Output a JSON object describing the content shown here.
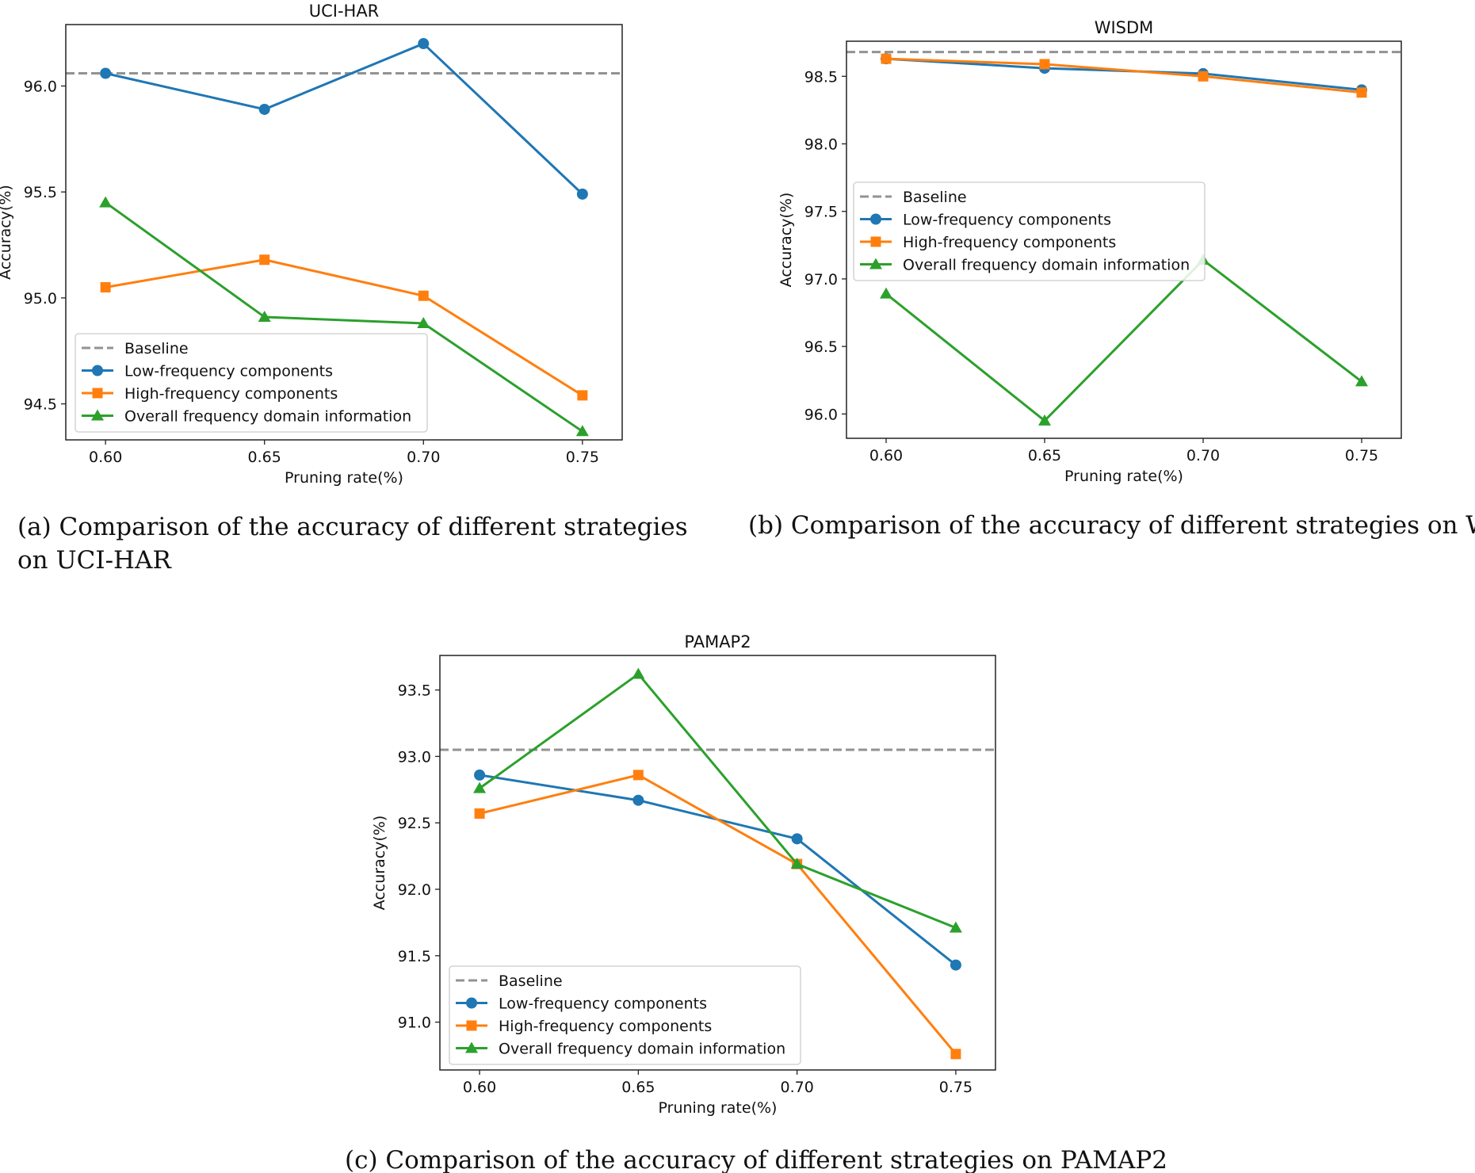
{
  "chart_data": [
    {
      "type": "line",
      "title": "UCI-HAR",
      "xlabel": "Pruning rate(%)",
      "ylabel": "Accuracy(%)",
      "x": [
        0.6,
        0.65,
        0.7,
        0.75
      ],
      "x_tick_labels": [
        "0.60",
        "0.65",
        "0.70",
        "0.75"
      ],
      "xlim": [
        0.5875,
        0.7625
      ],
      "ylim": [
        94.33,
        96.29
      ],
      "y_ticks": [
        94.5,
        95.0,
        95.5,
        96.0
      ],
      "y_tick_labels": [
        "94.5",
        "95.0",
        "95.5",
        "96.0"
      ],
      "baseline": 96.06,
      "legend_position": "lower-left",
      "series": [
        {
          "name": "Low-frequency components",
          "values": [
            96.06,
            95.89,
            96.2,
            95.49
          ]
        },
        {
          "name": "High-frequency components",
          "values": [
            95.05,
            95.18,
            95.01,
            94.54
          ]
        },
        {
          "name": "Overall frequency domain information",
          "values": [
            95.45,
            94.91,
            94.88,
            94.37
          ]
        }
      ],
      "caption": "(a) Comparison of the accuracy of different strategies on UCI-HAR"
    },
    {
      "type": "line",
      "title": "WISDM",
      "xlabel": "Pruning rate(%)",
      "ylabel": "Accuracy(%)",
      "x": [
        0.6,
        0.65,
        0.7,
        0.75
      ],
      "x_tick_labels": [
        "0.60",
        "0.65",
        "0.70",
        "0.75"
      ],
      "xlim": [
        0.5875,
        0.7625
      ],
      "ylim": [
        95.82,
        98.76
      ],
      "y_ticks": [
        96.0,
        96.5,
        97.0,
        97.5,
        98.0,
        98.5
      ],
      "y_tick_labels": [
        "96.0",
        "96.5",
        "97.0",
        "97.5",
        "98.0",
        "98.5"
      ],
      "baseline": 98.68,
      "legend_position": "center-left",
      "series": [
        {
          "name": "Low-frequency components",
          "values": [
            98.63,
            98.56,
            98.52,
            98.4
          ]
        },
        {
          "name": "High-frequency components",
          "values": [
            98.63,
            98.59,
            98.5,
            98.38
          ]
        },
        {
          "name": "Overall frequency domain information",
          "values": [
            96.89,
            95.95,
            97.14,
            96.24
          ]
        }
      ],
      "caption": "(b) Comparison of the accuracy of different strategies on WISDM"
    },
    {
      "type": "line",
      "title": "PAMAP2",
      "xlabel": "Pruning rate(%)",
      "ylabel": "Accuracy(%)",
      "x": [
        0.6,
        0.65,
        0.7,
        0.75
      ],
      "x_tick_labels": [
        "0.60",
        "0.65",
        "0.70",
        "0.75"
      ],
      "xlim": [
        0.5875,
        0.7625
      ],
      "ylim": [
        90.64,
        93.76
      ],
      "y_ticks": [
        91.0,
        91.5,
        92.0,
        92.5,
        93.0,
        93.5
      ],
      "y_tick_labels": [
        "91.0",
        "91.5",
        "92.0",
        "92.5",
        "93.0",
        "93.5"
      ],
      "baseline": 93.05,
      "legend_position": "lower-left",
      "series": [
        {
          "name": "Low-frequency components",
          "values": [
            92.86,
            92.67,
            92.38,
            91.43
          ]
        },
        {
          "name": "High-frequency components",
          "values": [
            92.57,
            92.86,
            92.19,
            90.76
          ]
        },
        {
          "name": "Overall frequency domain information",
          "values": [
            92.76,
            93.62,
            92.19,
            91.71
          ]
        }
      ],
      "caption": "(c) Comparison of the accuracy of different strategies on PAMAP2"
    }
  ],
  "legend": {
    "baseline_label": "Baseline"
  },
  "colors": {
    "baseline": "#929292",
    "series": [
      "#1f77b4",
      "#ff7f0e",
      "#2ca02c"
    ]
  },
  "markers": [
    "circle",
    "square",
    "triangle"
  ]
}
